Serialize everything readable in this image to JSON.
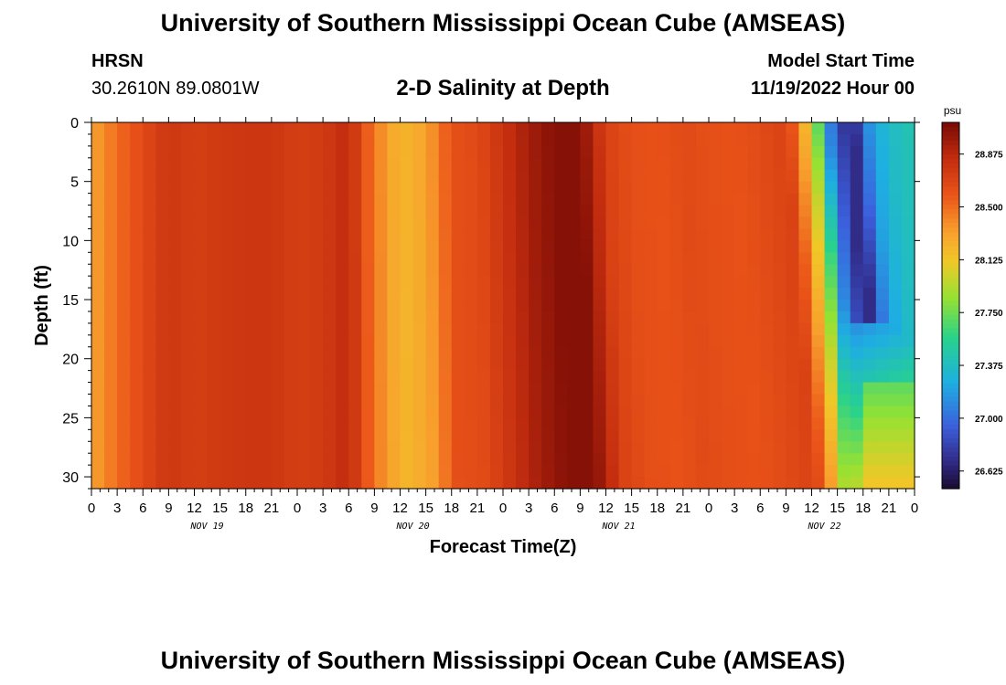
{
  "header": {
    "title": "University of Southern Mississippi Ocean Cube (AMSEAS)",
    "station": "HRSN",
    "coords": "30.2610N  89.0801W",
    "subtitle": "2-D Salinity at Depth",
    "model_start_label": "Model Start Time",
    "model_start_value": "11/19/2022 Hour 00"
  },
  "footer": {
    "title": "University of Southern Mississippi Ocean Cube (AMSEAS)"
  },
  "chart_data": {
    "type": "heatmap",
    "title": "2-D Salinity at Depth",
    "xlabel": "Forecast Time(Z)",
    "ylabel": "Depth (ft)",
    "x_hours_range": [
      0,
      96
    ],
    "y_range": [
      0,
      31
    ],
    "x_tick_labels": [
      "0",
      "3",
      "6",
      "9",
      "12",
      "15",
      "18",
      "21",
      "0",
      "3",
      "6",
      "9",
      "12",
      "15",
      "18",
      "21",
      "0",
      "3",
      "6",
      "9",
      "12",
      "15",
      "18",
      "21",
      "0",
      "3",
      "6",
      "9",
      "12",
      "15",
      "18",
      "21",
      "0"
    ],
    "y_tick_labels": [
      "0",
      "5",
      "10",
      "15",
      "20",
      "25",
      "30"
    ],
    "y_tick_values": [
      0,
      5,
      10,
      15,
      20,
      25,
      30
    ],
    "day_labels": [
      "NOV 19",
      "NOV 20",
      "NOV 21",
      "NOV 22"
    ],
    "colorbar": {
      "unit": "psu",
      "min": 26.5,
      "max": 29.1,
      "tick_labels": [
        "28.875",
        "28.500",
        "28.125",
        "27.750",
        "27.375",
        "27.000",
        "26.625"
      ],
      "tick_values": [
        28.875,
        28.5,
        28.125,
        27.75,
        27.375,
        27.0,
        26.625
      ]
    },
    "surface_salinity_by_hour": [
      [
        0,
        28.3
      ],
      [
        3,
        28.5
      ],
      [
        6,
        28.65
      ],
      [
        9,
        28.78
      ],
      [
        12,
        28.72
      ],
      [
        15,
        28.76
      ],
      [
        18,
        28.78
      ],
      [
        21,
        28.78
      ],
      [
        24,
        28.72
      ],
      [
        27,
        28.75
      ],
      [
        30,
        28.85
      ],
      [
        33,
        28.45
      ],
      [
        36,
        28.2
      ],
      [
        39,
        28.3
      ],
      [
        42,
        28.62
      ],
      [
        45,
        28.65
      ],
      [
        48,
        28.8
      ],
      [
        51,
        28.95
      ],
      [
        54,
        29.05
      ],
      [
        57,
        29.05
      ],
      [
        60,
        28.7
      ],
      [
        63,
        28.62
      ],
      [
        66,
        28.6
      ],
      [
        69,
        28.65
      ],
      [
        72,
        28.62
      ],
      [
        75,
        28.6
      ],
      [
        78,
        28.65
      ],
      [
        81,
        28.7
      ],
      [
        82,
        28.55
      ],
      [
        84,
        28.0
      ],
      [
        85,
        27.6
      ],
      [
        86,
        27.1
      ],
      [
        87,
        26.9
      ],
      [
        88,
        26.7
      ],
      [
        89,
        26.7
      ],
      [
        90,
        27.0
      ],
      [
        91,
        27.2
      ],
      [
        93,
        27.35
      ],
      [
        96,
        27.45
      ]
    ]
  }
}
